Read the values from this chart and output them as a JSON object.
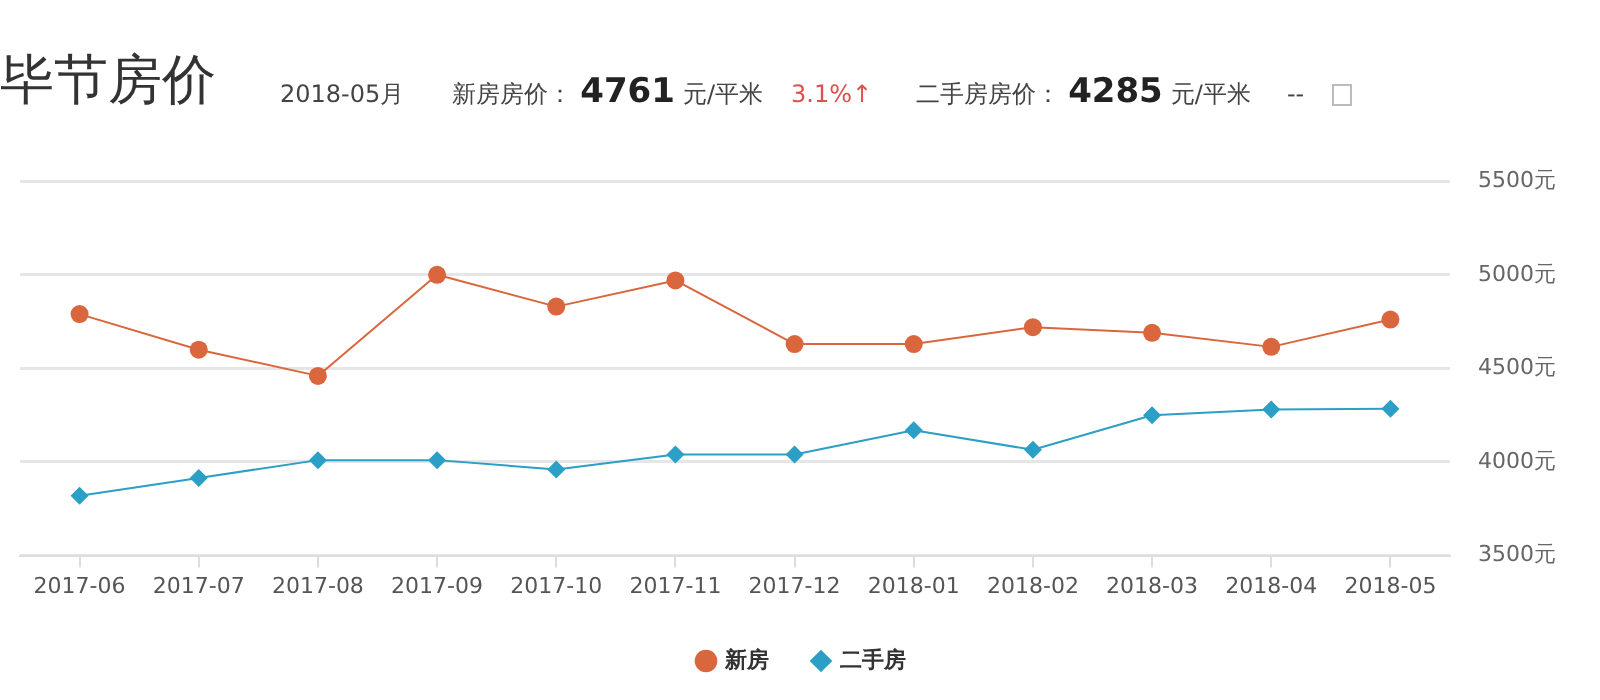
{
  "chart_data": {
    "type": "line",
    "title": "毕节房价",
    "annotations": [
      "2018-05月",
      "新房房价：",
      "4761",
      "元/平米",
      "3.1%↑",
      "二手房房价：",
      "4285",
      "元/平米",
      "--"
    ],
    "categories": [
      "2017-06",
      "2017-07",
      "2017-08",
      "2017-09",
      "2017-10",
      "2017-11",
      "2017-12",
      "2018-01",
      "2018-02",
      "2018-03",
      "2018-04",
      "2018-05"
    ],
    "series": [
      {
        "name": "新房",
        "color": "#d9663c",
        "marker": "circle",
        "values": [
          4790,
          4600,
          4460,
          5000,
          4830,
          4970,
          4630,
          4630,
          4720,
          4690,
          4615,
          4761
        ]
      },
      {
        "name": "二手房",
        "color": "#2b9fc5",
        "marker": "diamond",
        "values": [
          3820,
          3915,
          4010,
          4010,
          3960,
          4040,
          4040,
          4170,
          4065,
          4250,
          4280,
          4285
        ]
      }
    ],
    "ylim": [
      3500,
      5500
    ],
    "yticks": [
      {
        "value": 3500,
        "label": "3500元"
      },
      {
        "value": 4000,
        "label": "4000元"
      },
      {
        "value": 4500,
        "label": "4500元"
      },
      {
        "value": 5000,
        "label": "5000元"
      },
      {
        "value": 5500,
        "label": "5500元"
      }
    ],
    "grid": "y",
    "legend": "bottom",
    "line_style": "solid"
  }
}
